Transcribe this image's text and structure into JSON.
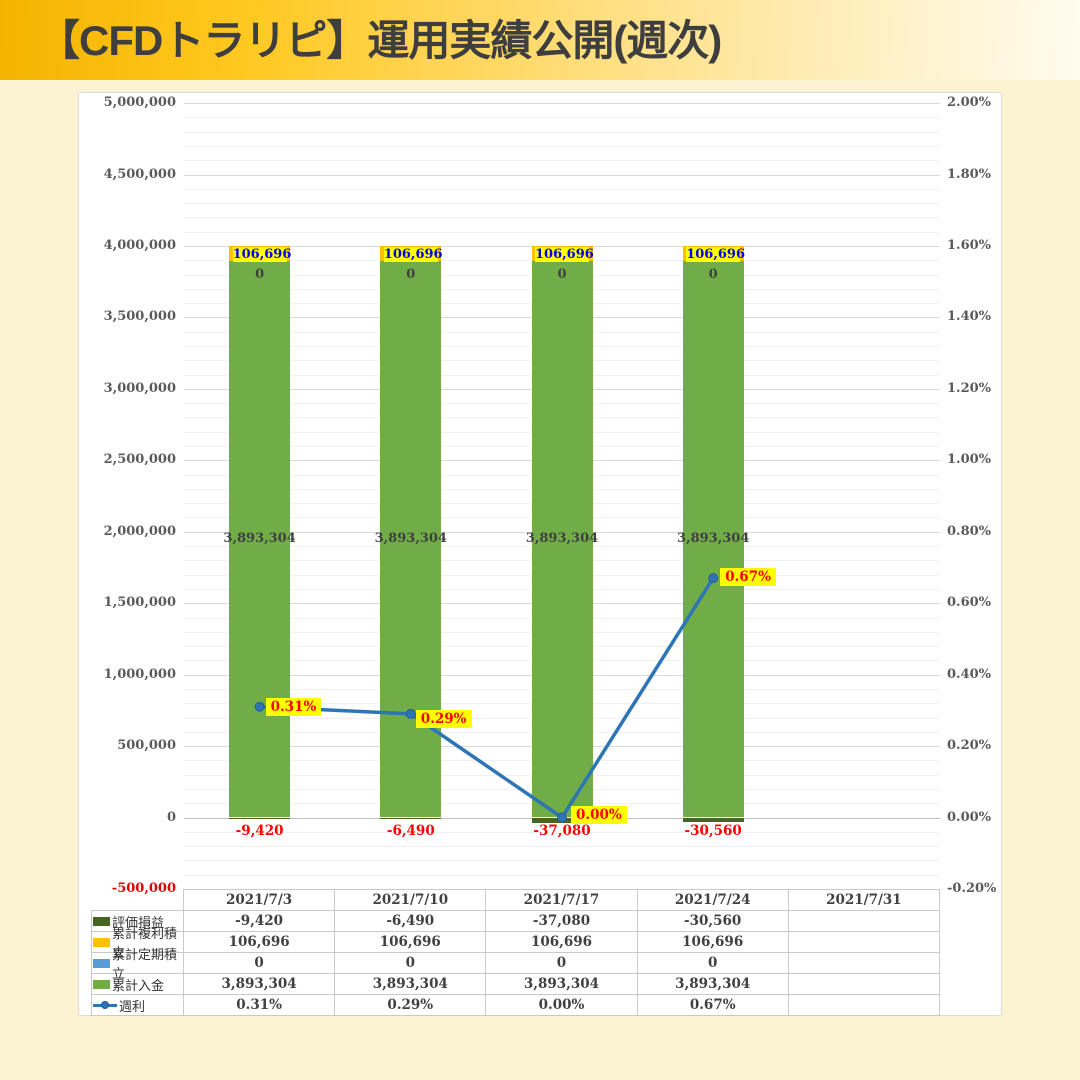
{
  "title": "【CFDトラリピ】運用実績公開(週次)",
  "colors": {
    "page_background": "#FCF3D2",
    "banner_gold": "#F5B300",
    "card_background": "#FFFFFF",
    "highlight_yellow": "#FFFF00",
    "label_red": "#FF0000",
    "label_blue": "#0000E6",
    "axis_text": "#595959",
    "table_text": "#404040"
  },
  "chart_data": {
    "type": "combo_stacked_bar_line",
    "categories": [
      "2021/7/3",
      "2021/7/10",
      "2021/7/17",
      "2021/7/24",
      "2021/7/31"
    ],
    "bar_series": [
      {
        "key": "hyoka",
        "name": "評価損益",
        "color": "#466422",
        "label_color": "#FF0000",
        "values": [
          -9420,
          -6490,
          -37080,
          -30560,
          null
        ],
        "labels": [
          "-9,420",
          "-6,490",
          "-37,080",
          "-30,560",
          ""
        ]
      },
      {
        "key": "fukuri",
        "name": "累計複利積立",
        "color": "#FFC000",
        "label_color": "#0000E6",
        "label_bg": "#FFFF00",
        "values": [
          106696,
          106696,
          106696,
          106696,
          null
        ],
        "labels": [
          "106,696",
          "106,696",
          "106,696",
          "106,696",
          ""
        ]
      },
      {
        "key": "teiki",
        "name": "累計定期積立",
        "color": "#5B9BD5",
        "label_color": "#404040",
        "values": [
          0,
          0,
          0,
          0,
          null
        ],
        "labels": [
          "0",
          "0",
          "0",
          "0",
          ""
        ]
      },
      {
        "key": "nyukin",
        "name": "累計入金",
        "color": "#70AD47",
        "label_color": "#404040",
        "values": [
          3893304,
          3893304,
          3893304,
          3893304,
          null
        ],
        "labels": [
          "3,893,304",
          "3,893,304",
          "3,893,304",
          "3,893,304",
          ""
        ]
      }
    ],
    "line_series": {
      "key": "shuri",
      "name": "週利",
      "color": "#2E75B6",
      "marker_edge": "#255E91",
      "label_color": "#FF0000",
      "label_bg": "#FFFF00",
      "values_pct": [
        0.31,
        0.29,
        0.0,
        0.67,
        null
      ],
      "labels": [
        "0.31%",
        "0.29%",
        "0.00%",
        "0.67%",
        ""
      ]
    },
    "left_axis": {
      "min": -500000,
      "max": 5000000,
      "major_step": 500000,
      "minor_step": 100000,
      "tick_labels": [
        "5,000,000",
        "4,500,000",
        "4,000,000",
        "3,500,000",
        "3,000,000",
        "2,500,000",
        "2,000,000",
        "1,500,000",
        "1,000,000",
        "500,000",
        "0",
        "-500,000"
      ]
    },
    "right_axis": {
      "min": -0.2,
      "max": 2.0,
      "major_step": 0.2,
      "tick_labels": [
        "2.00%",
        "1.80%",
        "1.60%",
        "1.40%",
        "1.20%",
        "1.00%",
        "0.80%",
        "0.60%",
        "0.40%",
        "0.20%",
        "0.00%",
        "-0.20%"
      ]
    },
    "grid": "major and minor horizontal gridlines",
    "legend_position": "data-table row headers"
  },
  "table": {
    "row_order": [
      "hyoka",
      "fukuri",
      "teiki",
      "nyukin",
      "shuri"
    ]
  }
}
